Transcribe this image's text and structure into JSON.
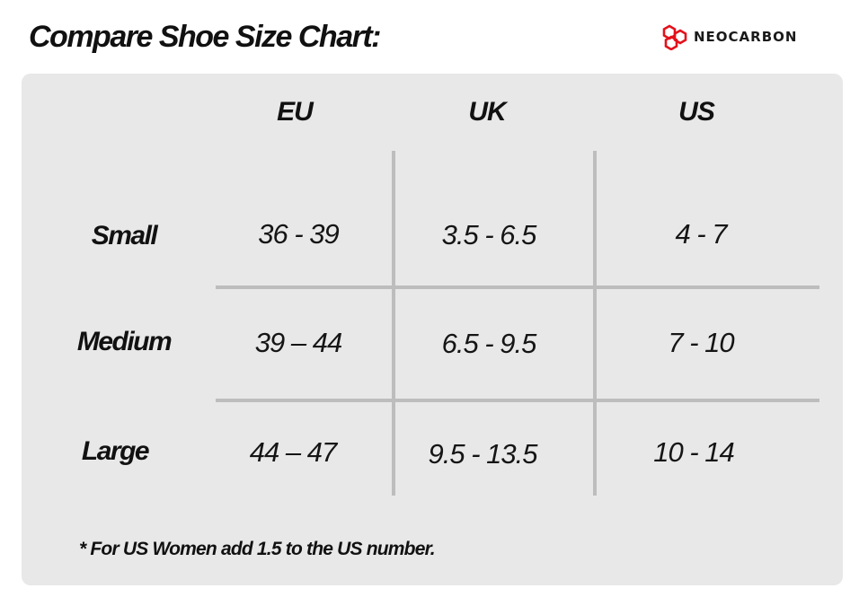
{
  "header": {
    "title": "Compare Shoe Size Chart:",
    "brand_name": "NEOCARBON",
    "brand_color": "#e3111b"
  },
  "table": {
    "columns": [
      "EU",
      "UK",
      "US"
    ],
    "rows": [
      {
        "label": "Small",
        "cells": [
          "36 - 39",
          "3.5 - 6.5",
          "4 - 7"
        ]
      },
      {
        "label": "Medium",
        "cells": [
          "39 – 44",
          "6.5 - 9.5",
          "7 - 10"
        ]
      },
      {
        "label": "Large",
        "cells": [
          "44 – 47",
          "9.5 - 13.5",
          "10 - 14"
        ]
      }
    ],
    "panel_color": "#e8e8e8",
    "grid_color": "#bdbdbd"
  },
  "footnote": "* For US Women add 1.5 to the US number."
}
